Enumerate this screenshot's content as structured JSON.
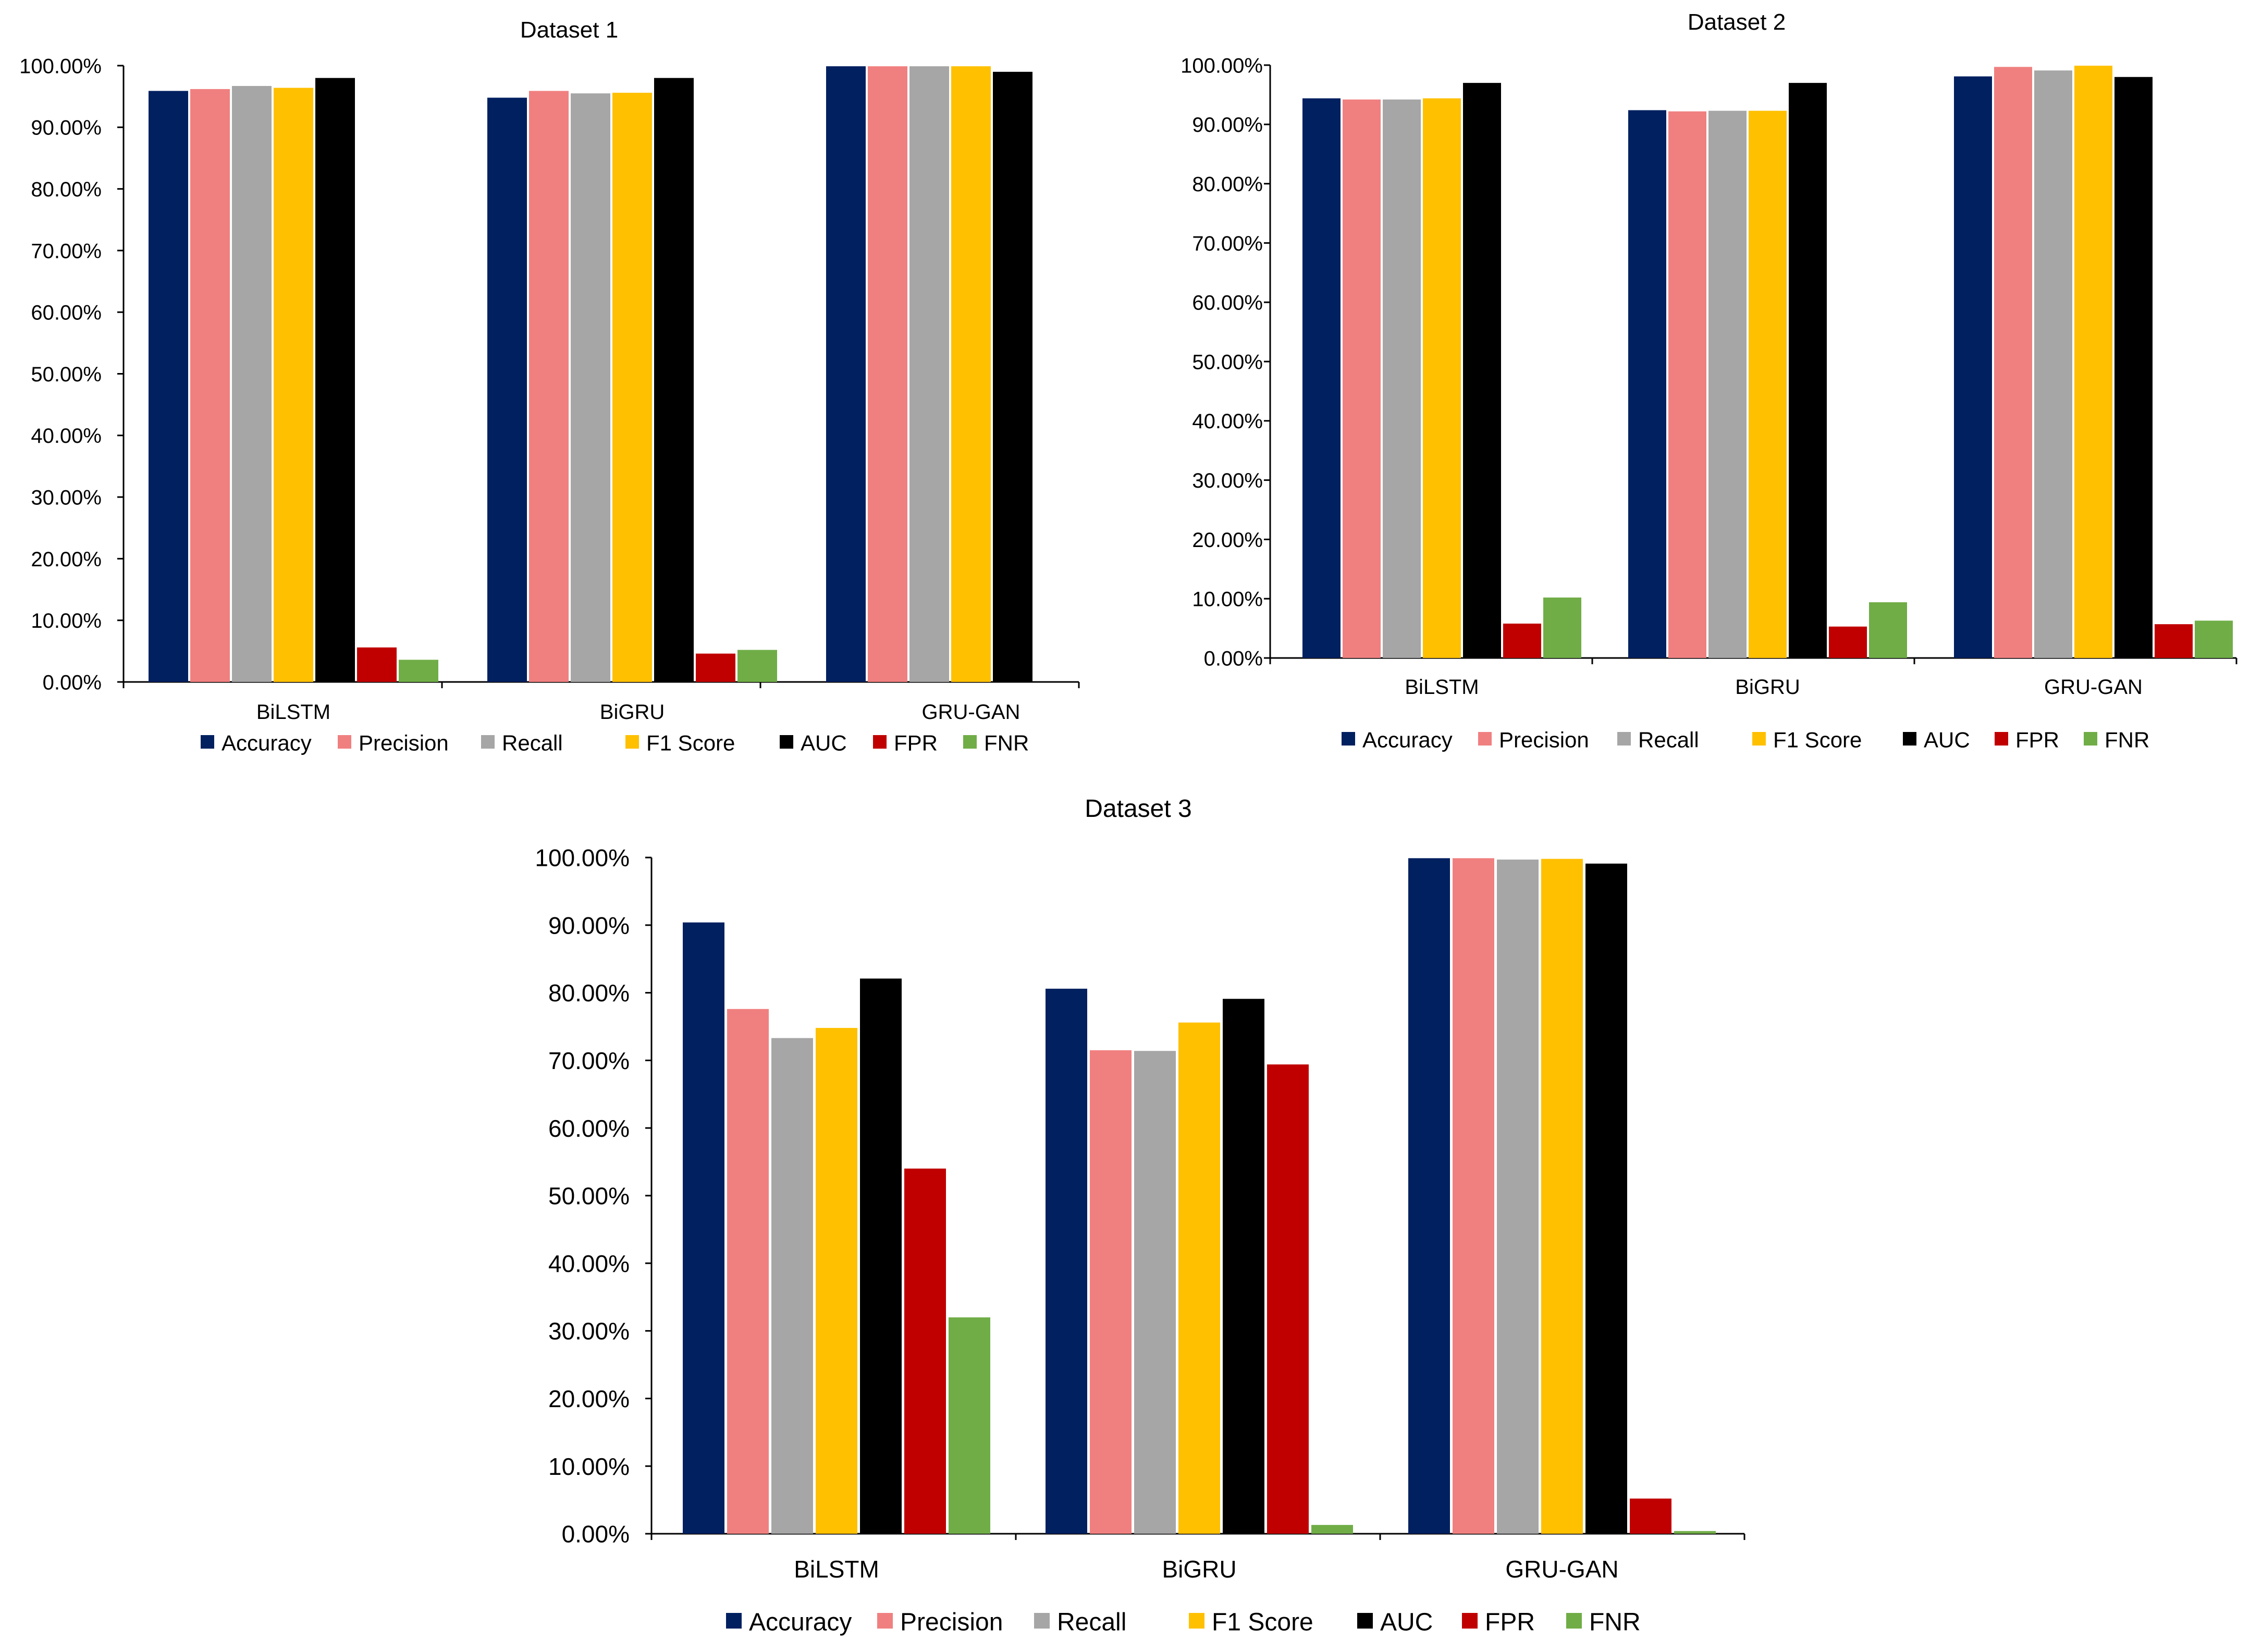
{
  "chart_data": [
    {
      "type": "bar",
      "title": "Dataset 1",
      "categories": [
        "BiLSTM",
        "BiGRU",
        "GRU-GAN"
      ],
      "ylim": [
        0,
        100
      ],
      "yticks": [
        "0.00%",
        "10.00%",
        "20.00%",
        "30.00%",
        "40.00%",
        "50.00%",
        "60.00%",
        "70.00%",
        "80.00%",
        "90.00%",
        "100.00%"
      ],
      "legend_position": "bottom",
      "series": [
        {
          "name": "Accuracy",
          "color": "#002060",
          "values": [
            95.9,
            94.8,
            99.9
          ]
        },
        {
          "name": "Precision",
          "color": "#F08080",
          "values": [
            96.2,
            95.9,
            99.9
          ]
        },
        {
          "name": "Recall",
          "color": "#A6A6A6",
          "values": [
            96.7,
            95.5,
            99.9
          ]
        },
        {
          "name": "F1 Score",
          "color": "#FFC000",
          "values": [
            96.4,
            95.6,
            99.9
          ]
        },
        {
          "name": "AUC",
          "color": "#000000",
          "values": [
            98.0,
            98.0,
            99.0
          ]
        },
        {
          "name": "FPR",
          "color": "#C00000",
          "values": [
            5.6,
            4.6,
            0.0
          ]
        },
        {
          "name": "FNR",
          "color": "#70AD47",
          "values": [
            3.6,
            5.2,
            0.0
          ]
        }
      ]
    },
    {
      "type": "bar",
      "title": "Dataset 2",
      "categories": [
        "BiLSTM",
        "BiGRU",
        "GRU-GAN"
      ],
      "ylim": [
        0,
        100
      ],
      "yticks": [
        "0.00%",
        "10.00%",
        "20.00%",
        "30.00%",
        "40.00%",
        "50.00%",
        "60.00%",
        "70.00%",
        "80.00%",
        "90.00%",
        "100.00%"
      ],
      "legend_position": "bottom",
      "series": [
        {
          "name": "Accuracy",
          "color": "#002060",
          "values": [
            94.4,
            92.4,
            98.1
          ]
        },
        {
          "name": "Precision",
          "color": "#F08080",
          "values": [
            94.2,
            92.2,
            99.7
          ]
        },
        {
          "name": "Recall",
          "color": "#A6A6A6",
          "values": [
            94.2,
            92.3,
            99.1
          ]
        },
        {
          "name": "F1 Score",
          "color": "#FFC000",
          "values": [
            94.4,
            92.3,
            99.9
          ]
        },
        {
          "name": "AUC",
          "color": "#000000",
          "values": [
            97.0,
            97.0,
            98.0
          ]
        },
        {
          "name": "FPR",
          "color": "#C00000",
          "values": [
            5.8,
            5.3,
            5.7
          ]
        },
        {
          "name": "FNR",
          "color": "#70AD47",
          "values": [
            10.2,
            9.4,
            6.3
          ]
        }
      ]
    },
    {
      "type": "bar",
      "title": "Dataset 3",
      "categories": [
        "BiLSTM",
        "BiGRU",
        "GRU-GAN"
      ],
      "ylim": [
        0,
        100
      ],
      "yticks": [
        "0.00%",
        "10.00%",
        "20.00%",
        "30.00%",
        "40.00%",
        "50.00%",
        "60.00%",
        "70.00%",
        "80.00%",
        "90.00%",
        "100.00%"
      ],
      "legend_position": "bottom",
      "series": [
        {
          "name": "Accuracy",
          "color": "#002060",
          "values": [
            90.4,
            80.6,
            99.9
          ]
        },
        {
          "name": "Precision",
          "color": "#F08080",
          "values": [
            77.6,
            71.5,
            99.9
          ]
        },
        {
          "name": "Recall",
          "color": "#A6A6A6",
          "values": [
            73.3,
            71.4,
            99.7
          ]
        },
        {
          "name": "F1 Score",
          "color": "#FFC000",
          "values": [
            74.8,
            75.6,
            99.8
          ]
        },
        {
          "name": "AUC",
          "color": "#000000",
          "values": [
            82.1,
            79.1,
            99.1
          ]
        },
        {
          "name": "FPR",
          "color": "#C00000",
          "values": [
            54.0,
            69.4,
            5.2
          ]
        },
        {
          "name": "FNR",
          "color": "#70AD47",
          "values": [
            32.0,
            1.3,
            0.4
          ]
        }
      ]
    }
  ]
}
